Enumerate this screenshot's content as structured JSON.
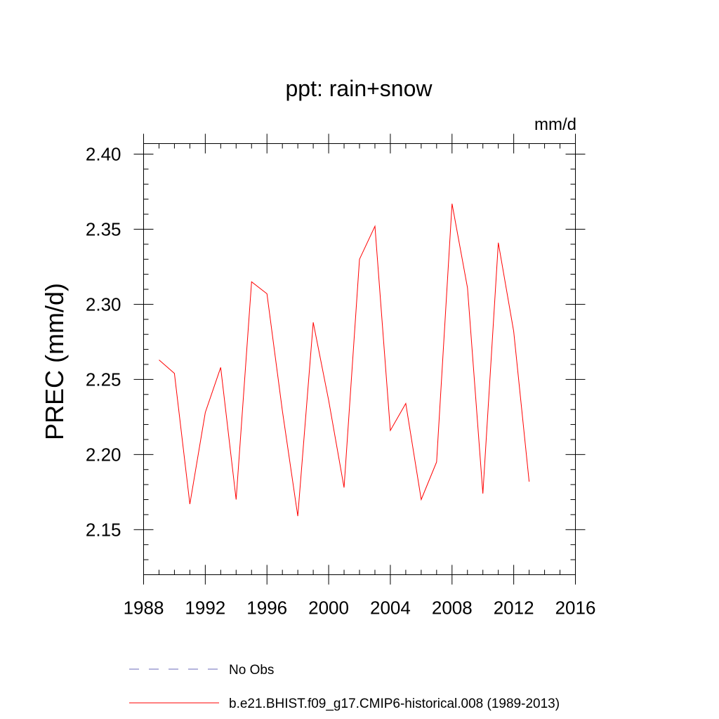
{
  "chart_data": {
    "type": "line",
    "title": "ppt: rain+snow",
    "unit_label": "mm/d",
    "ylabel": "PREC  (mm/d)",
    "xlabel": "",
    "xlim": [
      1988,
      2016
    ],
    "ylim": [
      2.12,
      2.407
    ],
    "x_ticks": [
      "1988",
      "1992",
      "1996",
      "2000",
      "2004",
      "2008",
      "2012",
      "2016"
    ],
    "y_ticks": [
      "2.15",
      "2.20",
      "2.25",
      "2.30",
      "2.35",
      "2.40"
    ],
    "grid": false,
    "legend_placement": "bottom",
    "series": [
      {
        "name": "b.e21.BHIST.f09_g17.CMIP6-historical.008 (1989-2013)",
        "color": "#ff0000",
        "style": "solid",
        "x": [
          1989,
          1990,
          1991,
          1992,
          1993,
          1994,
          1995,
          1996,
          1997,
          1998,
          1999,
          2000,
          2001,
          2002,
          2003,
          2004,
          2005,
          2006,
          2007,
          2008,
          2009,
          2010,
          2011,
          2012,
          2013
        ],
        "values": [
          2.263,
          2.254,
          2.167,
          2.228,
          2.258,
          2.17,
          2.315,
          2.307,
          2.229,
          2.159,
          2.288,
          2.236,
          2.178,
          2.33,
          2.352,
          2.216,
          2.234,
          2.17,
          2.195,
          2.367,
          2.311,
          2.174,
          2.341,
          2.282,
          2.182
        ]
      }
    ],
    "legend": [
      {
        "label": "No Obs",
        "color": "#6a6ab8",
        "style": "dashed"
      },
      {
        "label": "b.e21.BHIST.f09_g17.CMIP6-historical.008 (1989-2013)",
        "color": "#ff0000",
        "style": "solid"
      }
    ]
  }
}
